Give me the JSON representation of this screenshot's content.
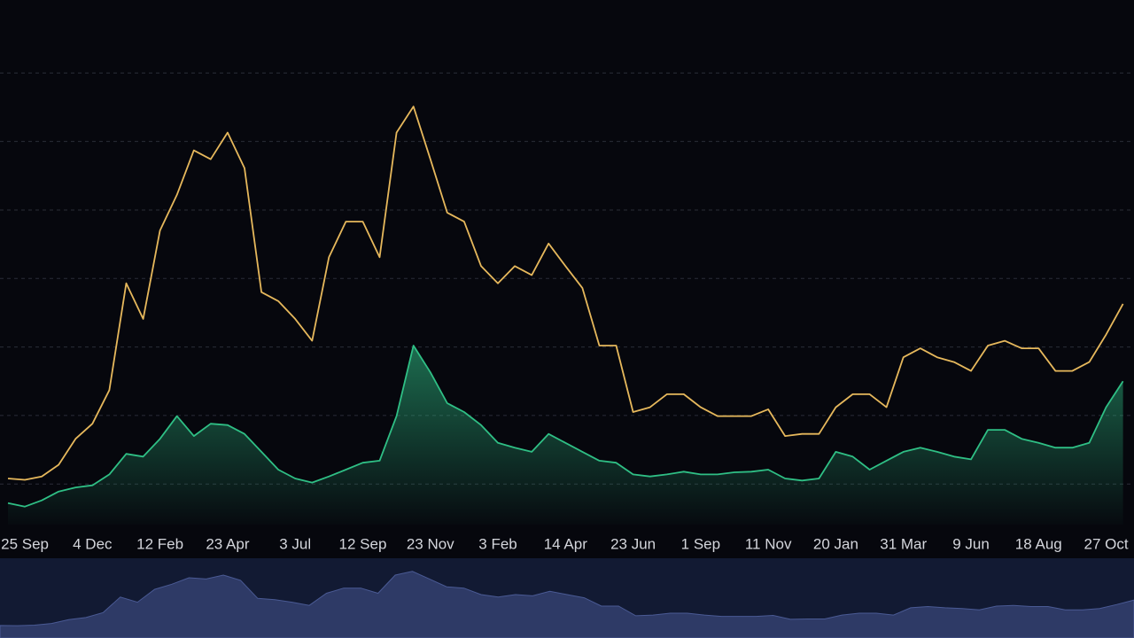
{
  "chart_data": {
    "type": "line",
    "categories": [
      null,
      "25 Sep",
      null,
      null,
      null,
      "4 Dec",
      null,
      null,
      null,
      "12 Feb",
      null,
      null,
      null,
      "23 Apr",
      null,
      null,
      null,
      "3 Jul",
      null,
      null,
      null,
      "12 Sep",
      null,
      null,
      null,
      "23 Nov",
      null,
      null,
      null,
      "3 Feb",
      null,
      null,
      null,
      "14 Apr",
      null,
      null,
      null,
      "23 Jun",
      null,
      null,
      null,
      "1 Sep",
      null,
      null,
      null,
      "11 Nov",
      null,
      null,
      null,
      "20 Jan",
      null,
      null,
      null,
      "31 Mar",
      null,
      null,
      null,
      "9 Jun",
      null,
      null,
      null,
      "18 Aug",
      null,
      null,
      null,
      "27 Oct",
      null
    ],
    "series": [
      {
        "color": "#e6b85c",
        "values": [
          1.08,
          1.06,
          1.11,
          1.28,
          1.66,
          1.88,
          2.37,
          3.93,
          3.41,
          4.7,
          5.22,
          5.87,
          5.74,
          6.13,
          5.61,
          3.8,
          3.67,
          3.41,
          3.09,
          4.31,
          4.83,
          4.83,
          4.31,
          6.13,
          6.51,
          5.74,
          4.96,
          4.83,
          4.18,
          3.93,
          4.18,
          4.05,
          4.51,
          4.18,
          3.86,
          3.02,
          3.02,
          2.05,
          2.12,
          2.31,
          2.31,
          2.12,
          1.99,
          1.99,
          1.99,
          2.09,
          1.7,
          1.73,
          1.73,
          2.12,
          2.31,
          2.31,
          2.12,
          2.85,
          2.98,
          2.85,
          2.78,
          2.65,
          3.02,
          3.09,
          2.98,
          2.98,
          2.65,
          2.65,
          2.78,
          3.18,
          3.63
        ]
      },
      {
        "color": "#2fbf85",
        "area": true,
        "values": [
          0.72,
          0.67,
          0.76,
          0.89,
          0.95,
          0.98,
          1.14,
          1.44,
          1.4,
          1.66,
          1.99,
          1.7,
          1.88,
          1.86,
          1.73,
          1.47,
          1.21,
          1.08,
          1.02,
          1.11,
          1.21,
          1.31,
          1.34,
          1.99,
          3.02,
          2.63,
          2.18,
          2.05,
          1.86,
          1.6,
          1.53,
          1.47,
          1.73,
          1.6,
          1.47,
          1.34,
          1.31,
          1.14,
          1.11,
          1.14,
          1.18,
          1.14,
          1.14,
          1.17,
          1.18,
          1.21,
          1.08,
          1.05,
          1.08,
          1.47,
          1.4,
          1.21,
          1.34,
          1.47,
          1.53,
          1.47,
          1.4,
          1.36,
          1.79,
          1.79,
          1.66,
          1.6,
          1.53,
          1.53,
          1.6,
          2.12,
          2.5
        ]
      }
    ],
    "ylim": [
      0,
      8
    ],
    "yticks": [
      1,
      2,
      3,
      4,
      5,
      6,
      7
    ],
    "grid": true,
    "navigator": {
      "series": 0,
      "color": "#2e3a66",
      "background": "#121a33"
    }
  }
}
